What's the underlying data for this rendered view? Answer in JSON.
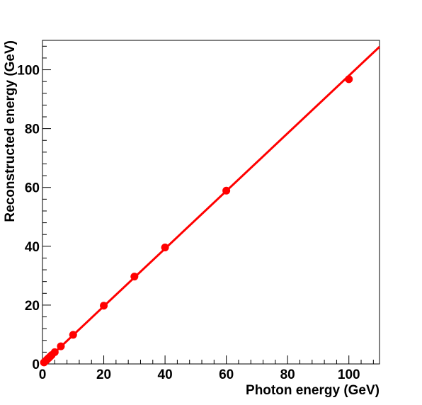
{
  "chart_data": {
    "type": "scatter",
    "title": "",
    "xlabel": "Photon energy (GeV)",
    "ylabel": "Reconstructed energy (GeV)",
    "xlim": [
      0,
      110
    ],
    "ylim": [
      0,
      110
    ],
    "x_ticks": [
      0,
      20,
      40,
      60,
      80,
      100
    ],
    "y_ticks": [
      0,
      20,
      40,
      60,
      80,
      100
    ],
    "x_tick_labels": [
      "0",
      "20",
      "40",
      "60",
      "80",
      "100"
    ],
    "y_tick_labels": [
      "0",
      "20",
      "40",
      "60",
      "80",
      "100"
    ],
    "grid": false,
    "legend": "none",
    "colors": {
      "points": "#ff0000",
      "fit_line": "#ff0000",
      "axes": "#000000"
    },
    "series": [
      {
        "x": [
          0.5,
          1,
          1.5,
          2,
          2.5,
          3,
          4,
          6,
          10,
          20,
          30,
          40,
          60,
          100
        ],
        "values": [
          0.5,
          1,
          1.5,
          2,
          2.5,
          3,
          4,
          6,
          9.9,
          19.8,
          29.7,
          39.6,
          58.9,
          96.8
        ]
      }
    ],
    "fit_line": {
      "slope": 0.98,
      "intercept": 0,
      "x_range": [
        0,
        110
      ]
    }
  }
}
